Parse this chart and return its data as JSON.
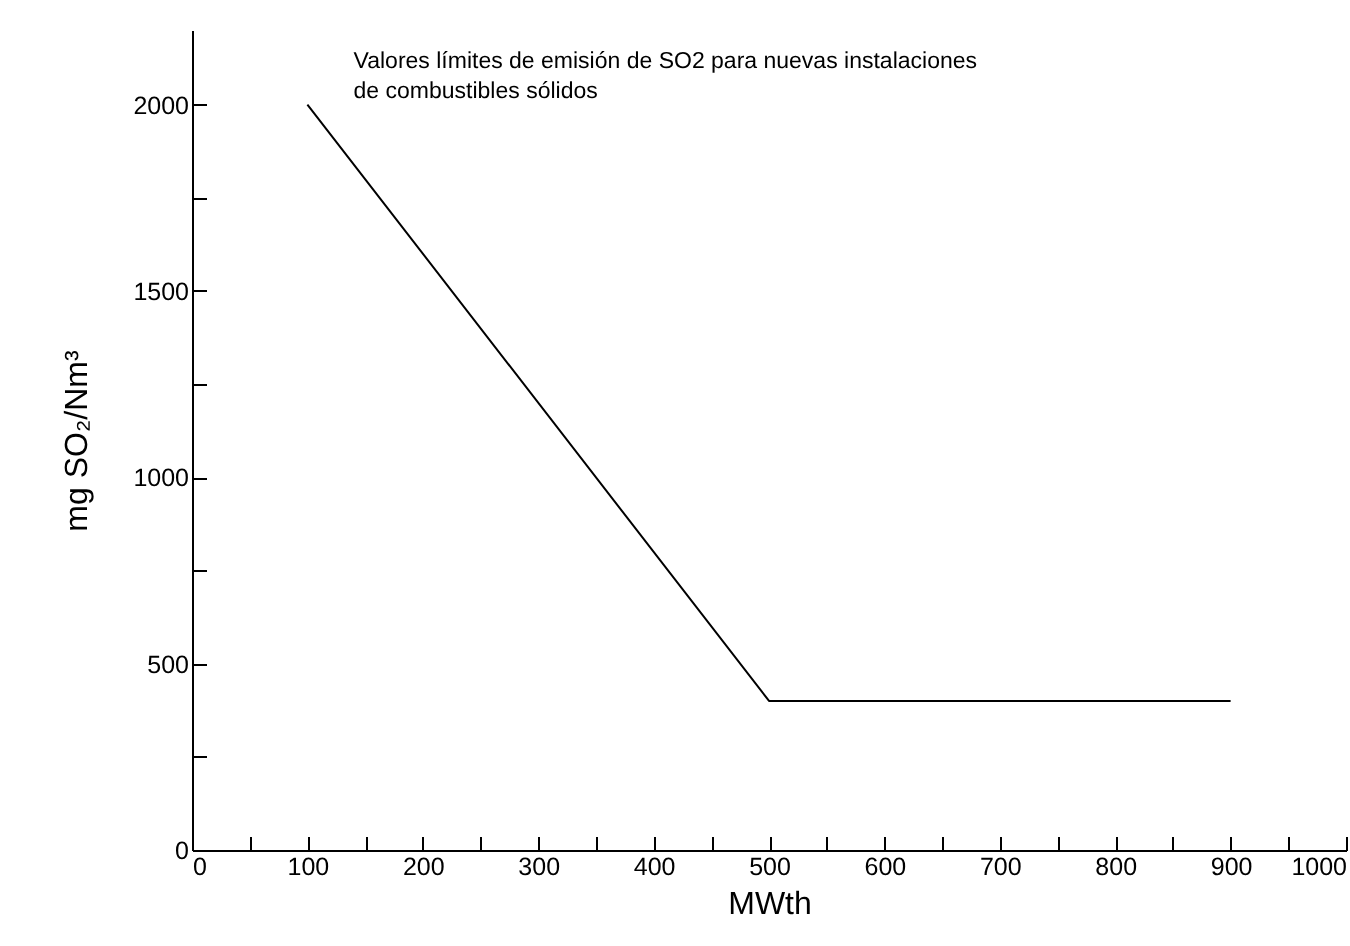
{
  "chart_data": {
    "type": "line",
    "title": "Valores límites de emisión de SO2 para nuevas instalaciones\nde combustibles sólidos",
    "xlabel": "MWth",
    "ylabel": "mg SO₂/Nm³",
    "x": [
      100,
      500,
      900
    ],
    "series": [
      {
        "color": "#000000",
        "values": [
          2000,
          400,
          400
        ]
      }
    ],
    "xlim": [
      0,
      1000
    ],
    "ylim": [
      0,
      2200
    ],
    "xticks": [
      0,
      {
        "value": 50,
        "label": null
      },
      100,
      {
        "value": 150,
        "label": null
      },
      200,
      {
        "value": 250,
        "label": null
      },
      300,
      {
        "value": 350,
        "label": null
      },
      400,
      {
        "value": 450,
        "label": null
      },
      500,
      {
        "value": 550,
        "label": null
      },
      600,
      {
        "value": 650,
        "label": null
      },
      700,
      {
        "value": 750,
        "label": null
      },
      800,
      {
        "value": 850,
        "label": null
      },
      900,
      {
        "value": 950,
        "label": null
      },
      1000
    ],
    "yticks": [
      0,
      {
        "value": 250,
        "label": null
      },
      500,
      {
        "value": 750,
        "label": null
      },
      1000,
      {
        "value": 1250,
        "label": null
      },
      1500,
      {
        "value": 1750,
        "label": null
      },
      2000
    ],
    "grid": false,
    "marker": "none",
    "line_style": "solid"
  }
}
